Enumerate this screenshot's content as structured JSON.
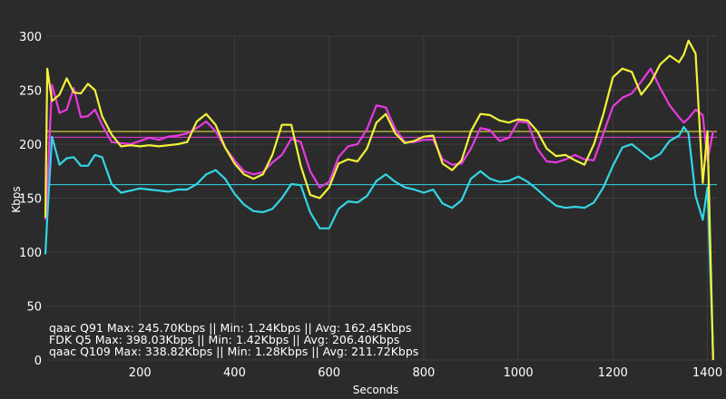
{
  "chart_data": {
    "type": "line",
    "xlabel": "Seconds",
    "ylabel": "Kbps",
    "xlim": [
      0,
      1420
    ],
    "ylim": [
      0,
      300
    ],
    "xticks": [
      200,
      400,
      600,
      800,
      1000,
      1200,
      1400
    ],
    "yticks": [
      0,
      50,
      100,
      150,
      200,
      250,
      300
    ],
    "grid": true,
    "legend_position": "bottom-left",
    "legend": [
      "qaac Q91 Max: 245.70Kbps || Min: 1.24Kbps || Avg: 162.45Kbps",
      "FDK Q5 Max: 398.03Kbps || Min: 1.42Kbps || Avg: 206.40Kbps",
      "qaac Q109 Max: 338.82Kbps || Min: 1.28Kbps || Avg: 211.72Kbps"
    ],
    "series": [
      {
        "color": "#33d6e6",
        "average": 162.45,
        "x": [
          0,
          4,
          14,
          30,
          45,
          60,
          75,
          90,
          105,
          120,
          140,
          160,
          180,
          200,
          220,
          240,
          260,
          280,
          300,
          320,
          340,
          360,
          380,
          400,
          420,
          440,
          460,
          480,
          500,
          520,
          540,
          560,
          580,
          600,
          620,
          640,
          660,
          680,
          700,
          720,
          740,
          760,
          780,
          800,
          820,
          840,
          860,
          880,
          900,
          920,
          940,
          960,
          980,
          1000,
          1020,
          1040,
          1060,
          1080,
          1100,
          1120,
          1140,
          1160,
          1180,
          1200,
          1220,
          1240,
          1260,
          1280,
          1300,
          1320,
          1340,
          1350,
          1360,
          1375,
          1390,
          1400,
          1412
        ],
        "y": [
          98,
          132,
          207,
          181,
          187,
          188,
          180,
          180,
          190,
          188,
          163,
          155,
          157,
          159,
          158,
          157,
          156,
          158,
          158,
          163,
          172,
          176,
          168,
          154,
          144,
          138,
          137,
          140,
          150,
          163,
          162,
          137,
          122,
          122,
          140,
          147,
          146,
          152,
          166,
          172,
          165,
          160,
          158,
          155,
          158,
          145,
          141,
          148,
          168,
          175,
          168,
          165,
          166,
          170,
          165,
          158,
          150,
          143,
          141,
          142,
          141,
          146,
          160,
          180,
          197,
          200,
          193,
          186,
          191,
          203,
          208,
          216,
          210,
          152,
          130,
          160,
          5
        ]
      },
      {
        "color": "#e83ae0",
        "average": 206.4,
        "x": [
          0,
          4,
          14,
          30,
          45,
          60,
          75,
          90,
          105,
          120,
          140,
          160,
          180,
          200,
          220,
          240,
          260,
          280,
          300,
          320,
          340,
          360,
          380,
          400,
          420,
          440,
          460,
          480,
          500,
          520,
          540,
          560,
          580,
          600,
          620,
          640,
          660,
          680,
          700,
          720,
          740,
          760,
          780,
          800,
          820,
          840,
          860,
          880,
          900,
          920,
          940,
          960,
          980,
          1000,
          1020,
          1040,
          1060,
          1080,
          1100,
          1120,
          1140,
          1160,
          1180,
          1200,
          1220,
          1240,
          1260,
          1280,
          1300,
          1320,
          1340,
          1350,
          1360,
          1375,
          1390,
          1400,
          1412
        ],
        "y": [
          130,
          160,
          255,
          229,
          232,
          252,
          225,
          226,
          232,
          218,
          202,
          201,
          200,
          203,
          206,
          204,
          207,
          208,
          210,
          215,
          221,
          212,
          197,
          185,
          175,
          172,
          174,
          183,
          190,
          205,
          202,
          175,
          160,
          165,
          188,
          198,
          200,
          214,
          236,
          234,
          214,
          202,
          202,
          204,
          204,
          186,
          181,
          182,
          196,
          215,
          213,
          203,
          206,
          221,
          220,
          196,
          184,
          183,
          186,
          190,
          186,
          185,
          210,
          235,
          243,
          247,
          258,
          270,
          252,
          236,
          225,
          220,
          224,
          232,
          227,
          185,
          212
        ]
      },
      {
        "color": "#f2f23a",
        "average": 211.72,
        "x": [
          0,
          4,
          14,
          30,
          45,
          60,
          75,
          90,
          105,
          120,
          140,
          160,
          180,
          200,
          220,
          240,
          260,
          280,
          300,
          320,
          340,
          360,
          380,
          400,
          420,
          440,
          460,
          480,
          500,
          520,
          540,
          560,
          580,
          600,
          620,
          640,
          660,
          680,
          700,
          720,
          740,
          760,
          780,
          800,
          820,
          840,
          860,
          880,
          900,
          920,
          940,
          960,
          980,
          1000,
          1020,
          1040,
          1060,
          1080,
          1100,
          1120,
          1140,
          1160,
          1180,
          1200,
          1220,
          1240,
          1260,
          1280,
          1300,
          1320,
          1340,
          1350,
          1360,
          1375,
          1390,
          1400,
          1412
        ],
        "y": [
          132,
          270,
          240,
          246,
          261,
          248,
          247,
          256,
          250,
          226,
          209,
          198,
          199,
          198,
          199,
          198,
          199,
          200,
          202,
          221,
          228,
          218,
          197,
          182,
          172,
          168,
          172,
          190,
          218,
          218,
          180,
          153,
          150,
          160,
          182,
          186,
          184,
          196,
          220,
          228,
          210,
          201,
          203,
          207,
          208,
          182,
          176,
          185,
          212,
          228,
          227,
          222,
          220,
          223,
          222,
          212,
          196,
          189,
          190,
          185,
          181,
          200,
          228,
          262,
          270,
          267,
          246,
          257,
          274,
          282,
          276,
          283,
          296,
          284,
          164,
          212,
          0
        ]
      }
    ]
  }
}
